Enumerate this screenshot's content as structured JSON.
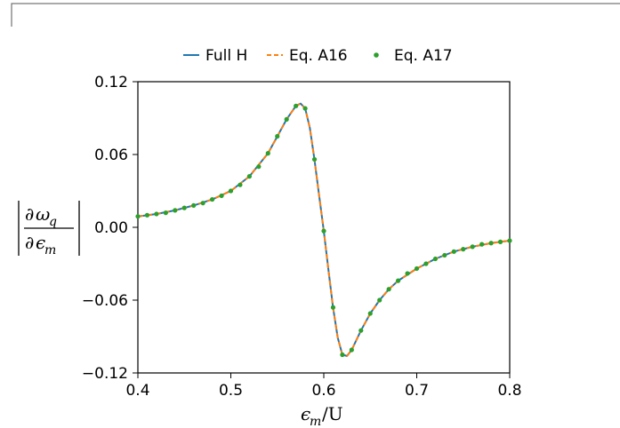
{
  "chart_data": {
    "type": "line",
    "title": "",
    "xlabel": "εm/U",
    "ylabel": "|∂ωq/∂εm|",
    "xlim": [
      0.4,
      0.8
    ],
    "ylim": [
      -0.12,
      0.12
    ],
    "xticks": [
      "0.4",
      "0.5",
      "0.6",
      "0.7",
      "0.8"
    ],
    "yticks": [
      "0.12",
      "0.06",
      "0.00",
      "−0.06",
      "−0.12"
    ],
    "legend_position": "top-center",
    "grid": false,
    "series": [
      {
        "name": "Full H",
        "style": "solid",
        "color": "#1f77b4",
        "x": [
          0.4,
          0.42,
          0.44,
          0.46,
          0.48,
          0.5,
          0.52,
          0.54,
          0.55,
          0.56,
          0.57,
          0.575,
          0.58,
          0.585,
          0.59,
          0.595,
          0.6,
          0.605,
          0.61,
          0.615,
          0.62,
          0.625,
          0.63,
          0.635,
          0.64,
          0.65,
          0.66,
          0.67,
          0.68,
          0.7,
          0.72,
          0.74,
          0.76,
          0.78,
          0.8
        ],
        "y": [
          0.009,
          0.011,
          0.014,
          0.018,
          0.023,
          0.03,
          0.042,
          0.061,
          0.075,
          0.089,
          0.1,
          0.102,
          0.098,
          0.082,
          0.056,
          0.026,
          -0.003,
          -0.035,
          -0.066,
          -0.091,
          -0.105,
          -0.106,
          -0.101,
          -0.093,
          -0.085,
          -0.071,
          -0.06,
          -0.051,
          -0.044,
          -0.034,
          -0.026,
          -0.02,
          -0.016,
          -0.013,
          -0.011
        ]
      },
      {
        "name": "Eq. A16",
        "style": "dashed",
        "color": "#ff7f0e",
        "x": [
          0.4,
          0.42,
          0.44,
          0.46,
          0.48,
          0.5,
          0.52,
          0.54,
          0.55,
          0.56,
          0.57,
          0.575,
          0.58,
          0.585,
          0.59,
          0.595,
          0.6,
          0.605,
          0.61,
          0.615,
          0.62,
          0.625,
          0.63,
          0.635,
          0.64,
          0.65,
          0.66,
          0.67,
          0.68,
          0.7,
          0.72,
          0.74,
          0.76,
          0.78,
          0.8
        ],
        "y": [
          0.009,
          0.011,
          0.014,
          0.018,
          0.023,
          0.03,
          0.042,
          0.061,
          0.075,
          0.089,
          0.1,
          0.102,
          0.098,
          0.082,
          0.056,
          0.026,
          -0.003,
          -0.035,
          -0.066,
          -0.091,
          -0.105,
          -0.106,
          -0.101,
          -0.093,
          -0.085,
          -0.071,
          -0.06,
          -0.051,
          -0.044,
          -0.034,
          -0.026,
          -0.02,
          -0.016,
          -0.013,
          -0.011
        ]
      },
      {
        "name": "Eq. A17",
        "style": "markers",
        "color": "#2ca02c",
        "x": [
          0.4,
          0.41,
          0.42,
          0.43,
          0.44,
          0.45,
          0.46,
          0.47,
          0.48,
          0.49,
          0.5,
          0.51,
          0.52,
          0.53,
          0.54,
          0.55,
          0.56,
          0.57,
          0.58,
          0.59,
          0.6,
          0.61,
          0.62,
          0.63,
          0.64,
          0.65,
          0.66,
          0.67,
          0.68,
          0.69,
          0.7,
          0.71,
          0.72,
          0.73,
          0.74,
          0.75,
          0.76,
          0.77,
          0.78,
          0.79,
          0.8
        ],
        "y": [
          0.009,
          0.01,
          0.011,
          0.012,
          0.014,
          0.016,
          0.018,
          0.02,
          0.023,
          0.026,
          0.03,
          0.035,
          0.042,
          0.05,
          0.061,
          0.075,
          0.089,
          0.1,
          0.098,
          0.056,
          -0.003,
          -0.066,
          -0.105,
          -0.101,
          -0.085,
          -0.071,
          -0.06,
          -0.051,
          -0.044,
          -0.038,
          -0.034,
          -0.03,
          -0.026,
          -0.023,
          -0.02,
          -0.018,
          -0.016,
          -0.014,
          -0.013,
          -0.012,
          -0.011
        ]
      }
    ]
  }
}
